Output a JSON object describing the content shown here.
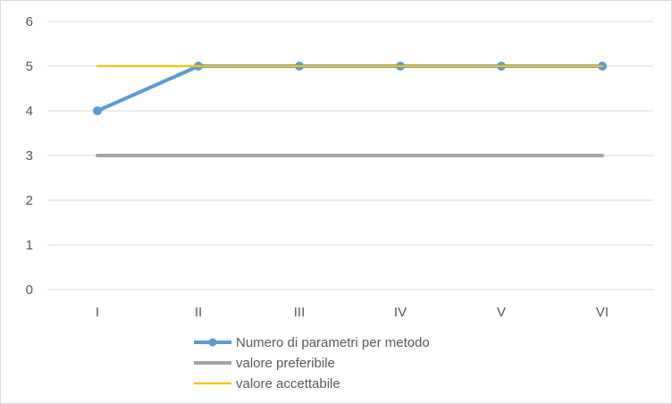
{
  "chart_data": {
    "type": "line",
    "title": "",
    "xlabel": "",
    "ylabel": "",
    "categories": [
      "I",
      "II",
      "III",
      "IV",
      "V",
      "VI"
    ],
    "ylim": [
      0,
      6
    ],
    "yticks": [
      0,
      1,
      2,
      3,
      4,
      5,
      6
    ],
    "grid": true,
    "legend_position": "bottom",
    "series": [
      {
        "name": "Numero di parametri per metodo",
        "values": [
          4,
          5,
          5,
          5,
          5,
          5
        ],
        "color": "#5b9bd5",
        "markers": true
      },
      {
        "name": "valore preferibile",
        "values": [
          3,
          3,
          3,
          3,
          3,
          3
        ],
        "color": "#a5a5a5",
        "markers": false
      },
      {
        "name": "valore accettabile",
        "values": [
          5,
          5,
          5,
          5,
          5,
          5
        ],
        "color": "#ffc000",
        "markers": false
      }
    ]
  },
  "colors": {
    "grid": "#d9d9d9",
    "text": "#595959"
  }
}
